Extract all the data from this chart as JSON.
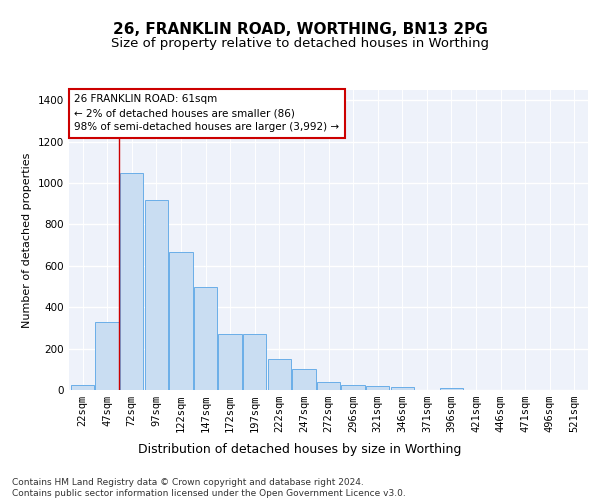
{
  "title": "26, FRANKLIN ROAD, WORTHING, BN13 2PG",
  "subtitle": "Size of property relative to detached houses in Worthing",
  "xlabel": "Distribution of detached houses by size in Worthing",
  "ylabel": "Number of detached properties",
  "categories": [
    "22sqm",
    "47sqm",
    "72sqm",
    "97sqm",
    "122sqm",
    "147sqm",
    "172sqm",
    "197sqm",
    "222sqm",
    "247sqm",
    "272sqm",
    "296sqm",
    "321sqm",
    "346sqm",
    "371sqm",
    "396sqm",
    "421sqm",
    "446sqm",
    "471sqm",
    "496sqm",
    "521sqm"
  ],
  "bar_values": [
    22,
    330,
    1050,
    920,
    665,
    500,
    270,
    270,
    150,
    100,
    38,
    25,
    20,
    15,
    0,
    10,
    0,
    0,
    0,
    0,
    0
  ],
  "bar_color": "#c9ddf2",
  "bar_edge_color": "#6aaee8",
  "annotation_line1": "26 FRANKLIN ROAD: 61sqm",
  "annotation_line2": "← 2% of detached houses are smaller (86)",
  "annotation_line3": "98% of semi-detached houses are larger (3,992) →",
  "annotation_box_color": "#ffffff",
  "annotation_box_edge": "#cc0000",
  "vline_x": 1.48,
  "vline_color": "#cc0000",
  "ylim": [
    0,
    1450
  ],
  "yticks": [
    0,
    200,
    400,
    600,
    800,
    1000,
    1200,
    1400
  ],
  "footer_text": "Contains HM Land Registry data © Crown copyright and database right 2024.\nContains public sector information licensed under the Open Government Licence v3.0.",
  "bg_color": "#eef2fa",
  "grid_color": "#ffffff",
  "title_fontsize": 11,
  "subtitle_fontsize": 9.5,
  "ylabel_fontsize": 8,
  "xlabel_fontsize": 9,
  "tick_fontsize": 7.5,
  "annotation_fontsize": 7.5,
  "footer_fontsize": 6.5
}
